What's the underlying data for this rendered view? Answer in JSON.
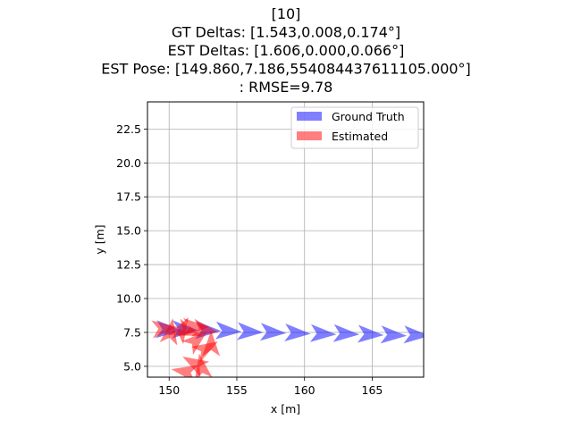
{
  "chart_data": {
    "type": "scatter",
    "title_lines": [
      "[10]",
      "GT Deltas: [1.543,0.008,0.174°]",
      "EST Deltas: [1.606,0.000,0.066°]",
      "EST Pose: [149.860,7.186,554084437611105.000°]",
      ": RMSE=9.78"
    ],
    "xlabel": "x [m]",
    "ylabel": "y [m]",
    "xlim": [
      148.4,
      168.8
    ],
    "ylim": [
      4.2,
      24.5
    ],
    "xticks": [
      150,
      155,
      160,
      165
    ],
    "xtick_labels": [
      "150",
      "155",
      "160",
      "165"
    ],
    "yticks": [
      5.0,
      7.5,
      10.0,
      12.5,
      15.0,
      17.5,
      20.0,
      22.5
    ],
    "ytick_labels": [
      "5.0",
      "7.5",
      "10.0",
      "12.5",
      "15.0",
      "17.5",
      "20.0",
      "22.5"
    ],
    "grid": true,
    "legend_position": "top-right",
    "series": [
      {
        "name": "Ground Truth",
        "color": "#0000ff",
        "alpha": 0.5,
        "marker": "arrow",
        "poses": [
          {
            "x": 149.9,
            "y": 7.7,
            "theta": -3
          },
          {
            "x": 151.1,
            "y": 7.7,
            "theta": -2
          },
          {
            "x": 152.8,
            "y": 7.65,
            "theta": -2
          },
          {
            "x": 154.3,
            "y": 7.6,
            "theta": -3
          },
          {
            "x": 155.9,
            "y": 7.55,
            "theta": -3
          },
          {
            "x": 157.6,
            "y": 7.5,
            "theta": -3
          },
          {
            "x": 159.4,
            "y": 7.45,
            "theta": -3
          },
          {
            "x": 161.3,
            "y": 7.4,
            "theta": -3
          },
          {
            "x": 163.0,
            "y": 7.4,
            "theta": -3
          },
          {
            "x": 164.8,
            "y": 7.35,
            "theta": -3
          },
          {
            "x": 166.5,
            "y": 7.3,
            "theta": -3
          },
          {
            "x": 168.2,
            "y": 7.3,
            "theta": -3
          }
        ]
      },
      {
        "name": "Estimated",
        "color": "#ff0000",
        "alpha": 0.5,
        "marker": "arrow",
        "poses": [
          {
            "x": 149.6,
            "y": 7.8,
            "theta": 5
          },
          {
            "x": 150.1,
            "y": 7.5,
            "theta": 80
          },
          {
            "x": 150.9,
            "y": 7.7,
            "theta": 60
          },
          {
            "x": 151.4,
            "y": 7.6,
            "theta": -20
          },
          {
            "x": 151.9,
            "y": 7.9,
            "theta": 0
          },
          {
            "x": 152.6,
            "y": 7.7,
            "theta": -10
          },
          {
            "x": 152.0,
            "y": 6.9,
            "theta": 40
          },
          {
            "x": 152.7,
            "y": 6.3,
            "theta": 30
          },
          {
            "x": 153.1,
            "y": 6.6,
            "theta": 90
          },
          {
            "x": 151.9,
            "y": 5.2,
            "theta": 150
          },
          {
            "x": 152.4,
            "y": 4.9,
            "theta": 100
          },
          {
            "x": 151.2,
            "y": 4.6,
            "theta": 170
          }
        ]
      }
    ]
  }
}
